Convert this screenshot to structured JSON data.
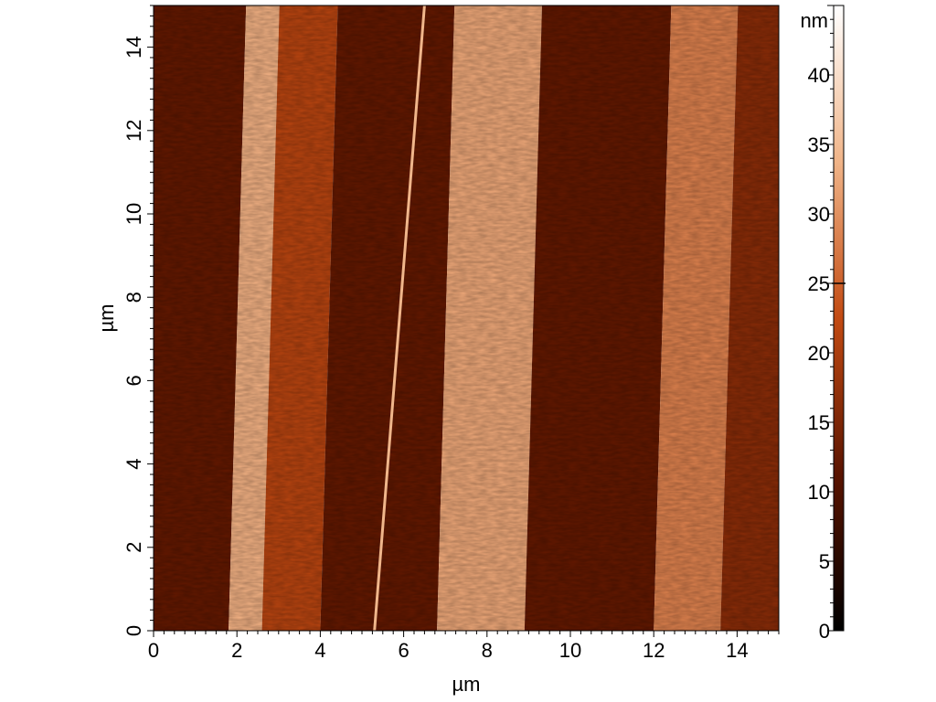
{
  "chart_data": {
    "type": "heatmap",
    "title": "",
    "xlabel": "µm",
    "ylabel": "µm",
    "xlim": [
      0,
      15
    ],
    "ylim": [
      0,
      15
    ],
    "x_ticks": [
      0,
      2,
      4,
      6,
      8,
      10,
      12,
      14
    ],
    "y_ticks": [
      0,
      2,
      4,
      6,
      8,
      10,
      12,
      14
    ],
    "grid": false,
    "colorbar": {
      "unit": "nm",
      "range": [
        0,
        45
      ],
      "ticks": [
        0,
        5,
        10,
        15,
        20,
        25,
        30,
        35,
        40
      ],
      "marker_value": 25,
      "colors": [
        "#000000",
        "#5a1400",
        "#c24a12",
        "#f0b488",
        "#ffffff"
      ]
    },
    "stripes": [
      {
        "x_start": 0.0,
        "x_end": 1.8,
        "height": 12
      },
      {
        "x_start": 1.8,
        "x_end": 2.6,
        "height": 33
      },
      {
        "x_start": 2.6,
        "x_end": 4.0,
        "height": 21
      },
      {
        "x_start": 4.0,
        "x_end": 6.8,
        "height": 12
      },
      {
        "x_start": 6.8,
        "x_end": 8.9,
        "height": 32
      },
      {
        "x_start": 8.9,
        "x_end": 12.0,
        "height": 12
      },
      {
        "x_start": 12.0,
        "x_end": 13.6,
        "height": 28
      },
      {
        "x_start": 13.6,
        "x_end": 15.0,
        "height": 16
      }
    ],
    "scratch_line": {
      "x_bottom": 5.3,
      "x_top": 6.5,
      "height": 34
    }
  }
}
